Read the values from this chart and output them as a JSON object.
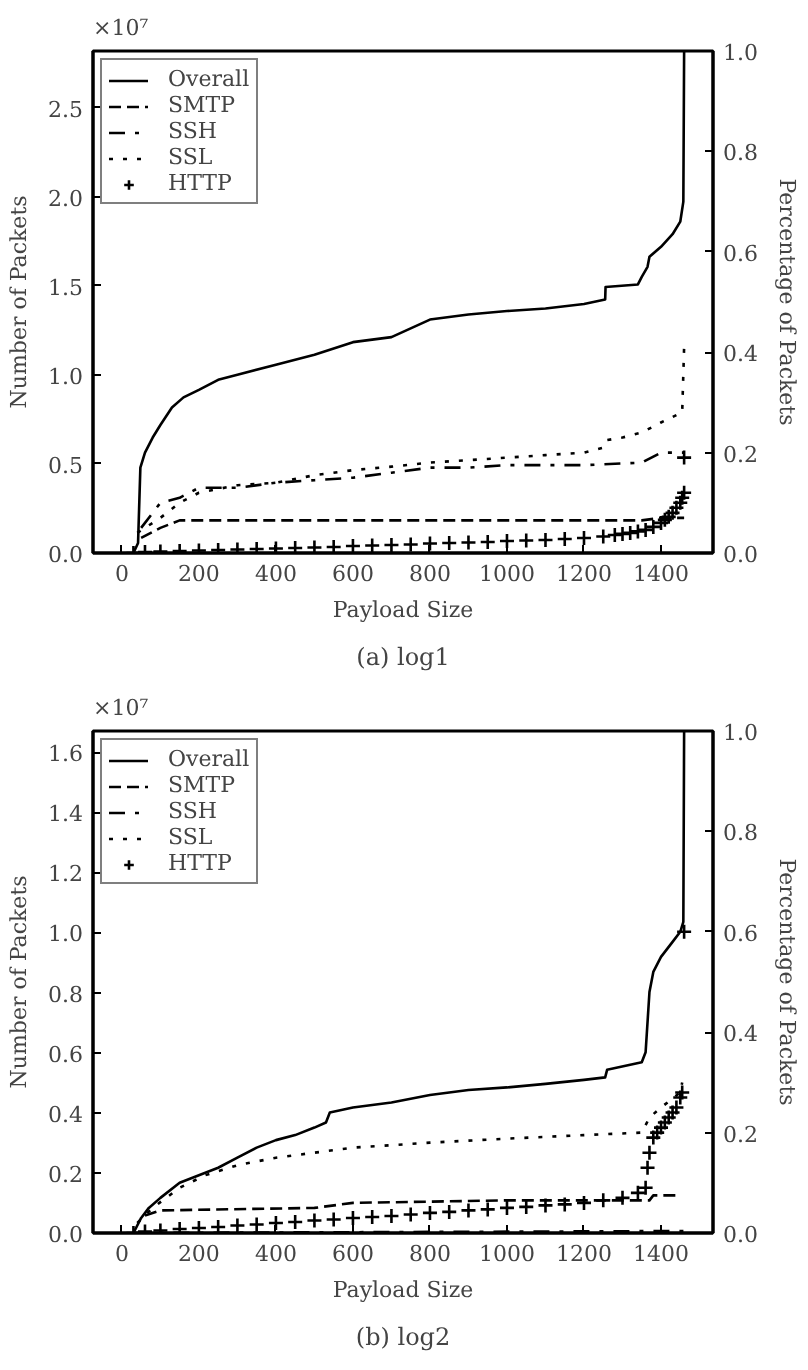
{
  "chart_data": [
    {
      "type": "line",
      "xlabel": "Payload Size",
      "ylabel": "Number of Packets",
      "y2label": "Percentage of Packets",
      "annotations": [
        "×10⁷",
        "(a) log1"
      ],
      "legend": "top left",
      "grid": false,
      "xlim": [
        -75,
        1535
      ],
      "xticks": [
        0,
        200,
        400,
        600,
        800,
        1000,
        1200,
        1400
      ],
      "ylim": [
        0,
        2.82
      ],
      "yticks": [
        {
          "value": 0,
          "label": "0.0"
        },
        {
          "value": 0.5,
          "label": "0.5"
        },
        {
          "value": 1,
          "label": "1.0"
        },
        {
          "value": 1.5,
          "label": "1.5"
        },
        {
          "value": 2,
          "label": "2.0"
        },
        {
          "value": 2.5,
          "label": "2.5"
        }
      ],
      "y2lim": [
        0,
        1
      ],
      "y2ticks": [
        {
          "value": 0,
          "label": "0.0"
        },
        {
          "value": 0.2,
          "label": "0.2"
        },
        {
          "value": 0.4,
          "label": "0.4"
        },
        {
          "value": 0.6,
          "label": "0.6"
        },
        {
          "value": 0.8,
          "label": "0.8"
        },
        {
          "value": 1,
          "label": "1.0"
        }
      ],
      "series": [
        {
          "name": "Overall",
          "color": "#000000",
          "line_style": "solid",
          "axis": "y2",
          "x": [
            30,
            42,
            48,
            60,
            80,
            100,
            130,
            160,
            200,
            250,
            300,
            400,
            500,
            600,
            700,
            800,
            900,
            1000,
            1100,
            1200,
            1255,
            1256,
            1340,
            1350,
            1365,
            1370,
            1400,
            1430,
            1450,
            1458,
            1460
          ],
          "values": [
            0,
            0.02,
            0.17,
            0.2,
            0.23,
            0.255,
            0.29,
            0.31,
            0.325,
            0.345,
            0.355,
            0.375,
            0.395,
            0.42,
            0.43,
            0.465,
            0.475,
            0.482,
            0.487,
            0.496,
            0.505,
            0.53,
            0.535,
            0.55,
            0.57,
            0.59,
            0.61,
            0.635,
            0.66,
            0.7,
            1.0
          ]
        },
        {
          "name": "SMTP",
          "color": "#000000",
          "line_style": "dashed",
          "axis": "y2",
          "x": [
            50,
            100,
            150,
            1350,
            1400,
            1460
          ],
          "values": [
            0.03,
            0.05,
            0.065,
            0.065,
            0.07,
            0.07
          ]
        },
        {
          "name": "SSH",
          "color": "#000000",
          "line_style": "dashdot",
          "axis": "y2",
          "x": [
            50,
            100,
            150,
            200,
            300,
            400,
            500,
            600,
            700,
            800,
            900,
            1000,
            1200,
            1350,
            1400,
            1460
          ],
          "values": [
            0.05,
            0.1,
            0.11,
            0.13,
            0.13,
            0.14,
            0.145,
            0.15,
            0.16,
            0.17,
            0.17,
            0.175,
            0.175,
            0.18,
            0.2,
            0.2
          ]
        },
        {
          "name": "SSL",
          "color": "#000000",
          "line_style": "dotted",
          "axis": "y2",
          "x": [
            40,
            100,
            150,
            200,
            300,
            400,
            500,
            600,
            700,
            800,
            900,
            1000,
            1100,
            1200,
            1250,
            1260,
            1300,
            1350,
            1400,
            1455,
            1460
          ],
          "values": [
            0.04,
            0.07,
            0.1,
            0.12,
            0.135,
            0.14,
            0.155,
            0.165,
            0.172,
            0.18,
            0.185,
            0.19,
            0.195,
            0.2,
            0.21,
            0.225,
            0.23,
            0.24,
            0.26,
            0.28,
            0.41
          ]
        },
        {
          "name": "HTTP",
          "type": "scatter",
          "marker": "cross",
          "color": "#000000",
          "axis": "y2",
          "x": [
            30,
            60,
            100,
            150,
            200,
            250,
            300,
            350,
            400,
            450,
            500,
            550,
            600,
            650,
            700,
            750,
            800,
            850,
            900,
            950,
            1000,
            1050,
            1100,
            1150,
            1200,
            1250,
            1280,
            1300,
            1320,
            1340,
            1360,
            1380,
            1400,
            1410,
            1420,
            1430,
            1440,
            1450,
            1455,
            1460,
            1460
          ],
          "values": [
            0,
            0.002,
            0.003,
            0.004,
            0.005,
            0.006,
            0.007,
            0.008,
            0.009,
            0.01,
            0.011,
            0.012,
            0.014,
            0.015,
            0.016,
            0.017,
            0.019,
            0.02,
            0.021,
            0.022,
            0.024,
            0.025,
            0.026,
            0.028,
            0.03,
            0.033,
            0.036,
            0.038,
            0.04,
            0.043,
            0.046,
            0.052,
            0.06,
            0.066,
            0.072,
            0.08,
            0.09,
            0.1,
            0.11,
            0.12,
            0.19
          ]
        }
      ]
    },
    {
      "type": "line",
      "xlabel": "Payload Size",
      "ylabel": "Number of Packets",
      "y2label": "Percentage of Packets",
      "annotations": [
        "×10⁷",
        "(b) log2"
      ],
      "legend": "top left",
      "grid": false,
      "xlim": [
        -75,
        1535
      ],
      "xticks": [
        0,
        200,
        400,
        600,
        800,
        1000,
        1200,
        1400
      ],
      "ylim": [
        0,
        1.67
      ],
      "yticks": [
        {
          "value": 0,
          "label": "0.0"
        },
        0.2,
        0.4,
        0.6,
        0.8,
        {
          "value": 1,
          "label": "1.0"
        },
        1.2,
        1.4,
        1.6
      ],
      "y2lim": [
        0,
        1
      ],
      "y2ticks": [
        {
          "value": 0,
          "label": "0.0"
        },
        {
          "value": 0.2,
          "label": "0.2"
        },
        {
          "value": 0.4,
          "label": "0.4"
        },
        {
          "value": 0.6,
          "label": "0.6"
        },
        {
          "value": 0.8,
          "label": "0.8"
        },
        {
          "value": 1,
          "label": "1.0"
        }
      ],
      "series": [
        {
          "name": "Overall",
          "color": "#000000",
          "line_style": "solid",
          "axis": "y2",
          "x": [
            30,
            50,
            70,
            100,
            150,
            200,
            250,
            300,
            350,
            400,
            450,
            500,
            530,
            540,
            600,
            700,
            800,
            900,
            1000,
            1100,
            1200,
            1255,
            1260,
            1350,
            1360,
            1370,
            1380,
            1400,
            1430,
            1450,
            1458,
            1460
          ],
          "values": [
            0,
            0.03,
            0.05,
            0.07,
            0.1,
            0.115,
            0.13,
            0.15,
            0.17,
            0.185,
            0.195,
            0.21,
            0.22,
            0.24,
            0.25,
            0.26,
            0.275,
            0.285,
            0.29,
            0.297,
            0.305,
            0.31,
            0.325,
            0.34,
            0.36,
            0.48,
            0.52,
            0.55,
            0.58,
            0.6,
            0.62,
            1.0
          ]
        },
        {
          "name": "SMTP",
          "color": "#000000",
          "line_style": "dashed",
          "axis": "y2",
          "x": [
            60,
            100,
            500,
            600,
            1000,
            1370,
            1380,
            1450
          ],
          "values": [
            0.035,
            0.045,
            0.05,
            0.06,
            0.065,
            0.065,
            0.075,
            0.075
          ]
        },
        {
          "name": "SSH",
          "color": "#000000",
          "line_style": "dashdot",
          "axis": "y2",
          "x": [
            30,
            1460
          ],
          "values": [
            0,
            0.004
          ]
        },
        {
          "name": "SSL",
          "color": "#000000",
          "line_style": "dotted",
          "axis": "y2",
          "x": [
            40,
            80,
            150,
            216,
            300,
            400,
            500,
            600,
            800,
            1000,
            1200,
            1350,
            1370,
            1400,
            1450,
            1455
          ],
          "values": [
            0.02,
            0.05,
            0.09,
            0.115,
            0.135,
            0.15,
            0.16,
            0.17,
            0.18,
            0.188,
            0.195,
            0.2,
            0.23,
            0.25,
            0.28,
            0.3
          ]
        },
        {
          "name": "HTTP",
          "type": "scatter",
          "marker": "cross",
          "color": "#000000",
          "axis": "y2",
          "x": [
            30,
            60,
            100,
            150,
            200,
            250,
            300,
            350,
            400,
            450,
            500,
            550,
            600,
            650,
            700,
            750,
            800,
            850,
            900,
            950,
            1000,
            1050,
            1100,
            1150,
            1200,
            1250,
            1300,
            1340,
            1360,
            1365,
            1370,
            1380,
            1390,
            1400,
            1410,
            1420,
            1430,
            1440,
            1450,
            1455,
            1460
          ],
          "values": [
            0,
            0.003,
            0.005,
            0.008,
            0.01,
            0.012,
            0.015,
            0.017,
            0.02,
            0.022,
            0.025,
            0.027,
            0.03,
            0.032,
            0.034,
            0.037,
            0.04,
            0.042,
            0.045,
            0.047,
            0.05,
            0.052,
            0.055,
            0.057,
            0.06,
            0.065,
            0.07,
            0.08,
            0.09,
            0.13,
            0.16,
            0.19,
            0.2,
            0.21,
            0.22,
            0.23,
            0.24,
            0.25,
            0.27,
            0.28,
            0.6
          ]
        }
      ]
    }
  ]
}
